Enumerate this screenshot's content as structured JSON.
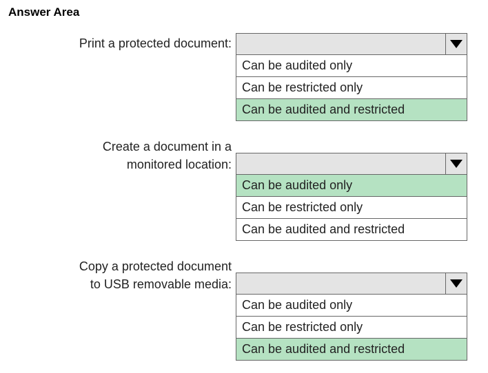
{
  "heading": "Answer Area",
  "questions": [
    {
      "label_lines": [
        "Print a protected document:"
      ],
      "options": [
        {
          "text": "Can be audited only",
          "selected": false
        },
        {
          "text": "Can be restricted only",
          "selected": false
        },
        {
          "text": "Can be audited and restricted",
          "selected": true
        }
      ]
    },
    {
      "label_lines": [
        "Create a document in a",
        "monitored location:"
      ],
      "options": [
        {
          "text": "Can be audited only",
          "selected": true
        },
        {
          "text": "Can be restricted only",
          "selected": false
        },
        {
          "text": "Can be audited and restricted",
          "selected": false
        }
      ]
    },
    {
      "label_lines": [
        "Copy a protected document",
        "to USB removable media:"
      ],
      "options": [
        {
          "text": "Can be audited only",
          "selected": false
        },
        {
          "text": "Can be restricted only",
          "selected": false
        },
        {
          "text": "Can be audited and restricted",
          "selected": true
        }
      ]
    }
  ],
  "colors": {
    "highlight": "#b5e2c2",
    "header_bg": "#e4e4e4",
    "border": "#666666",
    "text": "#222222"
  }
}
